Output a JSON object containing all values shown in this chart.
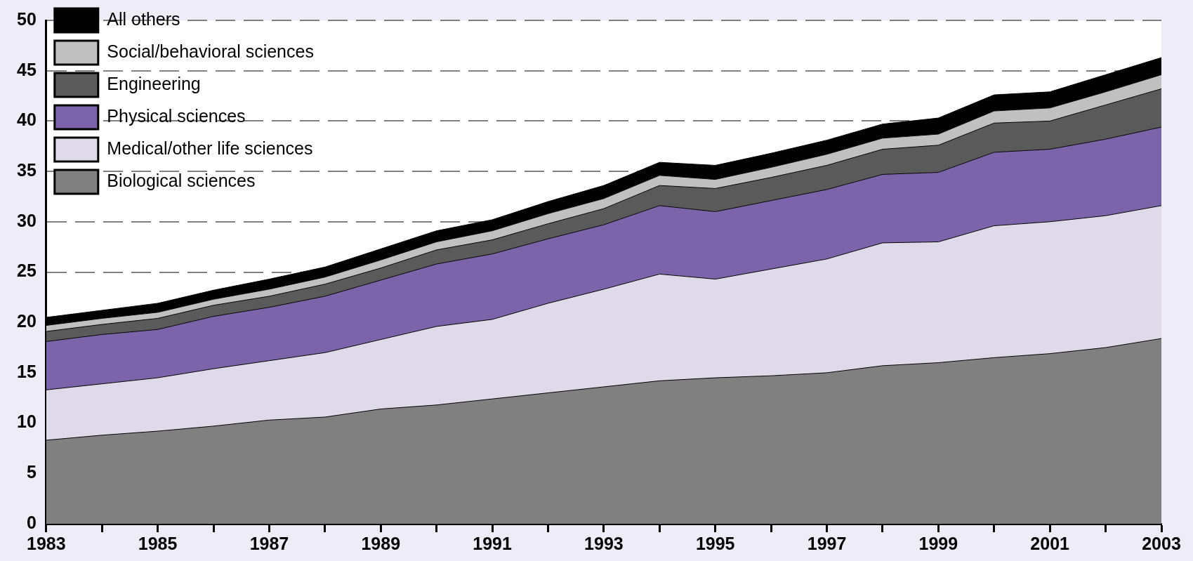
{
  "chart_data": {
    "type": "area",
    "stacked": true,
    "x": [
      1983,
      1984,
      1985,
      1986,
      1987,
      1988,
      1989,
      1990,
      1991,
      1992,
      1993,
      1994,
      1995,
      1996,
      1997,
      1998,
      1999,
      2000,
      2001,
      2002,
      2003
    ],
    "series": [
      {
        "name": "Biological sciences",
        "color": "#808080",
        "values": [
          8.3,
          8.8,
          9.2,
          9.7,
          10.3,
          10.6,
          11.4,
          11.8,
          12.4,
          13.0,
          13.6,
          14.2,
          14.5,
          14.7,
          15.0,
          15.7,
          16.0,
          16.5,
          16.9,
          17.5,
          18.4
        ]
      },
      {
        "name": "Medical/other life sciences",
        "color": "#dedae9",
        "values": [
          5.0,
          5.1,
          5.3,
          5.7,
          5.9,
          6.4,
          6.9,
          7.8,
          7.9,
          8.9,
          9.7,
          10.6,
          9.8,
          10.6,
          11.3,
          12.2,
          12.0,
          13.1,
          13.1,
          13.1,
          13.2
        ]
      },
      {
        "name": "Physical sciences",
        "color": "#7b64a9",
        "values": [
          4.8,
          4.9,
          4.8,
          5.2,
          5.3,
          5.6,
          5.9,
          6.2,
          6.5,
          6.4,
          6.4,
          6.8,
          6.7,
          6.8,
          6.9,
          6.8,
          6.9,
          7.3,
          7.2,
          7.6,
          7.8
        ]
      },
      {
        "name": "Engineering",
        "color": "#5a5a5a",
        "values": [
          1.0,
          1.0,
          1.1,
          1.1,
          1.1,
          1.2,
          1.2,
          1.4,
          1.4,
          1.5,
          1.6,
          2.0,
          2.3,
          2.3,
          2.4,
          2.5,
          2.7,
          2.9,
          2.8,
          3.4,
          3.8
        ]
      },
      {
        "name": "Social/behavioral sciences",
        "color": "#c0c0c0",
        "values": [
          0.6,
          0.6,
          0.6,
          0.6,
          0.7,
          0.7,
          0.8,
          0.8,
          0.9,
          1.0,
          1.0,
          1.0,
          0.9,
          1.0,
          1.1,
          1.1,
          1.1,
          1.2,
          1.3,
          1.3,
          1.4
        ]
      },
      {
        "name": "All others",
        "color": "#000000",
        "values": [
          0.8,
          0.8,
          0.9,
          0.9,
          1.0,
          1.0,
          1.1,
          1.1,
          1.1,
          1.2,
          1.3,
          1.3,
          1.4,
          1.4,
          1.4,
          1.4,
          1.6,
          1.6,
          1.6,
          1.7,
          1.7
        ]
      }
    ],
    "xlim": [
      1983,
      2003
    ],
    "xticks": [
      1983,
      {
        "value": 1984,
        "label": null
      },
      1985,
      {
        "value": 1986,
        "label": null
      },
      1987,
      {
        "value": 1988,
        "label": null
      },
      1989,
      {
        "value": 1990,
        "label": null
      },
      1991,
      {
        "value": 1992,
        "label": null
      },
      1993,
      {
        "value": 1994,
        "label": null
      },
      1995,
      {
        "value": 1996,
        "label": null
      },
      1997,
      {
        "value": 1998,
        "label": null
      },
      1999,
      {
        "value": 2000,
        "label": null
      },
      2001,
      {
        "value": 2002,
        "label": null
      },
      2003
    ],
    "ylim": [
      0,
      50
    ],
    "yticks": [
      0,
      5,
      10,
      15,
      20,
      25,
      30,
      35,
      40,
      45,
      50
    ],
    "grid": "y",
    "legend": "top left",
    "marker": "none"
  }
}
